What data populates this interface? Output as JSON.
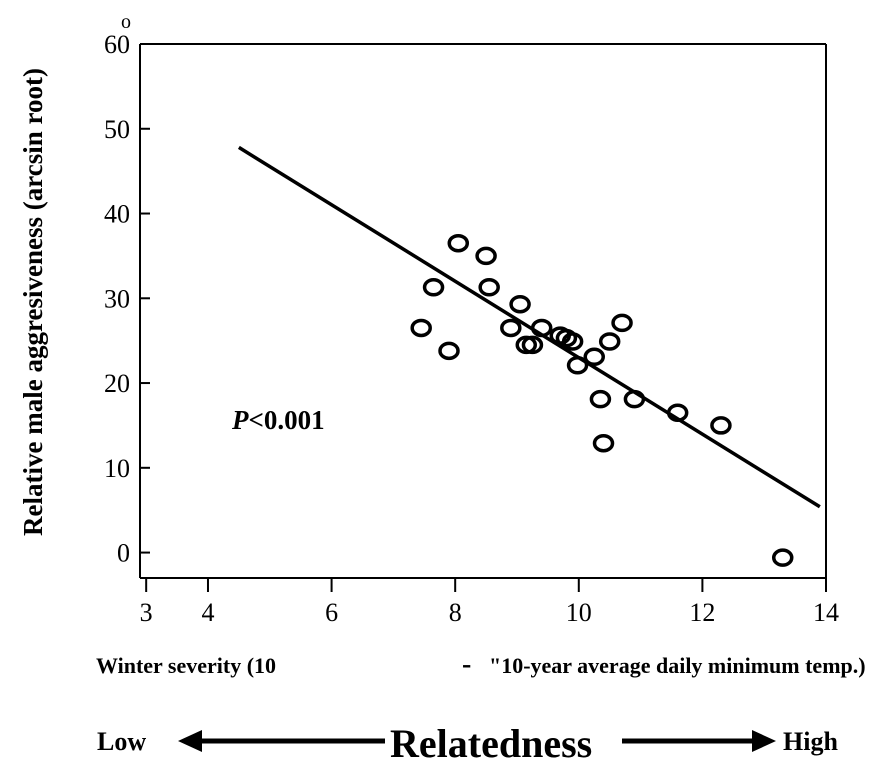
{
  "chart_data": {
    "type": "scatter",
    "ylabel": "Relative male aggresiveness (arcsin root)",
    "xlabel_left": "Winter  severity (10",
    "xlabel_dash": "-",
    "xlabel_right": "\"10-year average daily minimum temp.)",
    "ylim": [
      -3,
      60
    ],
    "xlim": [
      2.9,
      14
    ],
    "x_ticks": [
      3,
      4,
      6,
      8,
      10,
      12,
      14
    ],
    "y_ticks": [
      0,
      10,
      20,
      30,
      40,
      50,
      60
    ],
    "degree_mark": "o",
    "annotation": {
      "italic": "P",
      "rest": "<0.001"
    },
    "points": [
      {
        "x": 7.45,
        "y": 26.5
      },
      {
        "x": 7.65,
        "y": 31.3
      },
      {
        "x": 7.9,
        "y": 23.8
      },
      {
        "x": 8.05,
        "y": 36.5
      },
      {
        "x": 8.5,
        "y": 35.0
      },
      {
        "x": 8.55,
        "y": 31.3
      },
      {
        "x": 8.9,
        "y": 26.5
      },
      {
        "x": 9.05,
        "y": 29.3
      },
      {
        "x": 9.15,
        "y": 24.5
      },
      {
        "x": 9.25,
        "y": 24.5
      },
      {
        "x": 9.4,
        "y": 26.5
      },
      {
        "x": 9.7,
        "y": 25.6
      },
      {
        "x": 9.8,
        "y": 25.3
      },
      {
        "x": 9.9,
        "y": 24.9
      },
      {
        "x": 9.98,
        "y": 22.1
      },
      {
        "x": 10.25,
        "y": 23.1
      },
      {
        "x": 10.35,
        "y": 18.1
      },
      {
        "x": 10.4,
        "y": 12.9
      },
      {
        "x": 10.5,
        "y": 24.9
      },
      {
        "x": 10.7,
        "y": 27.1
      },
      {
        "x": 10.9,
        "y": 18.1
      },
      {
        "x": 11.6,
        "y": 16.5
      },
      {
        "x": 12.3,
        "y": 15.0
      },
      {
        "x": 13.3,
        "y": -0.6
      }
    ],
    "trendline": {
      "x": [
        4.5,
        13.9
      ],
      "y": [
        47.8,
        5.4
      ]
    }
  },
  "relatedness": {
    "low": "Low",
    "label": "Relatedness",
    "high": "High"
  }
}
